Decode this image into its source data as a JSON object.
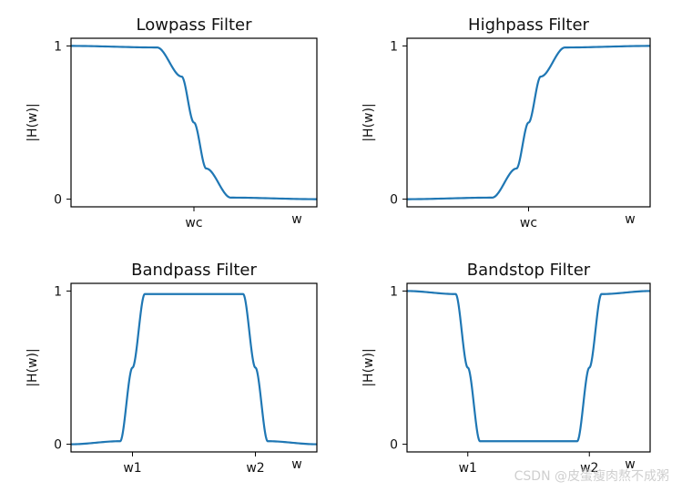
{
  "colors": {
    "line": "#1f77b4",
    "axes": "#000000"
  },
  "watermark": "CSDN @皮蛋瘦肉熬不成粥",
  "chart_data": [
    {
      "type": "line",
      "title": "Lowpass Filter",
      "ylabel": "|H(w)|",
      "w_label": "w",
      "xticks": [
        {
          "x": 0.5,
          "label": "wc"
        }
      ],
      "yticks": [
        {
          "y": 0,
          "label": "0"
        },
        {
          "y": 1,
          "label": "1"
        }
      ],
      "xlim": [
        0,
        1
      ],
      "ylim": [
        -0.05,
        1.05
      ],
      "x": [
        0.0,
        0.35,
        0.45,
        0.5,
        0.55,
        0.65,
        1.0
      ],
      "y": [
        1.0,
        0.99,
        0.8,
        0.5,
        0.2,
        0.01,
        0.0
      ]
    },
    {
      "type": "line",
      "title": "Highpass Filter",
      "ylabel": "|H(w)|",
      "w_label": "w",
      "xticks": [
        {
          "x": 0.5,
          "label": "wc"
        }
      ],
      "yticks": [
        {
          "y": 0,
          "label": "0"
        },
        {
          "y": 1,
          "label": "1"
        }
      ],
      "xlim": [
        0,
        1
      ],
      "ylim": [
        -0.05,
        1.05
      ],
      "x": [
        0.0,
        0.35,
        0.45,
        0.5,
        0.55,
        0.65,
        1.0
      ],
      "y": [
        0.0,
        0.01,
        0.2,
        0.5,
        0.8,
        0.99,
        1.0
      ]
    },
    {
      "type": "line",
      "title": "Bandpass Filter",
      "ylabel": "|H(w)|",
      "w_label": "w",
      "xticks": [
        {
          "x": 0.25,
          "label": "w1"
        },
        {
          "x": 0.75,
          "label": "w2"
        }
      ],
      "yticks": [
        {
          "y": 0,
          "label": "0"
        },
        {
          "y": 1,
          "label": "1"
        }
      ],
      "xlim": [
        0,
        1
      ],
      "ylim": [
        -0.05,
        1.05
      ],
      "x": [
        0.0,
        0.2,
        0.25,
        0.3,
        0.7,
        0.75,
        0.8,
        1.0
      ],
      "y": [
        0.0,
        0.02,
        0.5,
        0.98,
        0.98,
        0.5,
        0.02,
        0.0
      ]
    },
    {
      "type": "line",
      "title": "Bandstop Filter",
      "ylabel": "|H(w)|",
      "w_label": "w",
      "xticks": [
        {
          "x": 0.25,
          "label": "w1"
        },
        {
          "x": 0.75,
          "label": "w2"
        }
      ],
      "yticks": [
        {
          "y": 0,
          "label": "0"
        },
        {
          "y": 1,
          "label": "1"
        }
      ],
      "xlim": [
        0,
        1
      ],
      "ylim": [
        -0.05,
        1.05
      ],
      "x": [
        0.0,
        0.2,
        0.25,
        0.3,
        0.7,
        0.75,
        0.8,
        1.0
      ],
      "y": [
        1.0,
        0.98,
        0.5,
        0.02,
        0.02,
        0.5,
        0.98,
        1.0
      ]
    }
  ]
}
